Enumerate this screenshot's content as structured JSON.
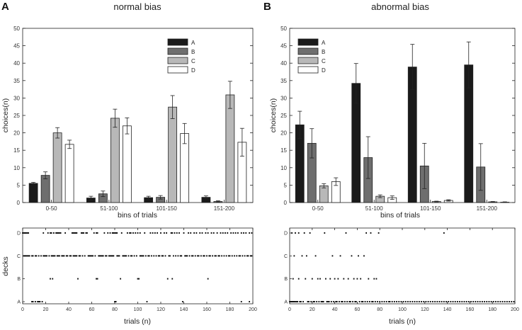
{
  "chart_data": [
    {
      "panel": "A",
      "title": "normal bias",
      "type": "bar",
      "xlabel": "bins of trials",
      "ylabel": "choices(n)",
      "ylim": [
        0,
        50
      ],
      "yticks": [
        0,
        5,
        10,
        15,
        20,
        25,
        30,
        35,
        40,
        45,
        50
      ],
      "categories": [
        "0-50",
        "51-100",
        "101-150",
        "151-200"
      ],
      "series": [
        {
          "name": "A",
          "color": "#1a1a1a",
          "values": [
            5.5,
            1.3,
            1.4,
            1.5
          ],
          "errors": [
            0.3,
            0.5,
            0.4,
            0.4
          ]
        },
        {
          "name": "B",
          "color": "#6e6e6e",
          "values": [
            7.8,
            2.5,
            1.5,
            0.3
          ],
          "errors": [
            1.0,
            0.8,
            0.5,
            0.2
          ]
        },
        {
          "name": "C",
          "color": "#b8b8b8",
          "values": [
            20.0,
            24.2,
            27.4,
            30.9
          ],
          "errors": [
            1.5,
            2.6,
            3.3,
            3.9
          ]
        },
        {
          "name": "D",
          "color": "#ffffff",
          "values": [
            16.7,
            22.0,
            19.8,
            17.3
          ],
          "errors": [
            1.2,
            2.3,
            2.9,
            4.0
          ]
        }
      ],
      "legend_position": "top-right"
    },
    {
      "panel": "B",
      "title": "abnormal bias",
      "type": "bar",
      "xlabel": "bins of trials",
      "ylabel": "choices(n)",
      "ylim": [
        0,
        50
      ],
      "yticks": [
        0,
        5,
        10,
        15,
        20,
        25,
        30,
        35,
        40,
        45,
        50
      ],
      "categories": [
        "0-50",
        "51-100",
        "101-150",
        "151-200"
      ],
      "series": [
        {
          "name": "A",
          "color": "#1a1a1a",
          "values": [
            22.3,
            34.2,
            38.9,
            39.5
          ],
          "errors": [
            3.9,
            5.7,
            6.5,
            6.6
          ]
        },
        {
          "name": "B",
          "color": "#6e6e6e",
          "values": [
            17.0,
            12.9,
            10.5,
            10.2
          ],
          "errors": [
            4.2,
            6.0,
            6.5,
            6.7
          ]
        },
        {
          "name": "C",
          "color": "#b8b8b8",
          "values": [
            4.8,
            1.8,
            0.3,
            0.2
          ],
          "errors": [
            0.6,
            0.4,
            0.1,
            0.1
          ]
        },
        {
          "name": "D",
          "color": "#ffffff",
          "values": [
            6.0,
            1.4,
            0.6,
            0.1
          ],
          "errors": [
            1.1,
            0.5,
            0.2,
            0.1
          ]
        }
      ],
      "legend_position": "top-left"
    },
    {
      "panel": "A-lower",
      "type": "scatter",
      "xlabel": "trials (n)",
      "ylabel": "decks",
      "xlim": [
        0,
        200
      ],
      "xticks": [
        0,
        20,
        40,
        60,
        80,
        100,
        120,
        140,
        160,
        180,
        200
      ],
      "y_categories": [
        "A",
        "B",
        "C",
        "D"
      ],
      "points": {
        "A": [
          8,
          9,
          11,
          13,
          14,
          15,
          17,
          80,
          81,
          108,
          139,
          190,
          197
        ],
        "B": [
          24,
          26,
          48,
          64,
          65,
          85,
          100,
          101,
          126,
          130,
          161
        ],
        "C": [
          1,
          2,
          3,
          4,
          5,
          6,
          8,
          9,
          11,
          12,
          14,
          16,
          18,
          19,
          20,
          21,
          23,
          25,
          26,
          27,
          28,
          30,
          31,
          32,
          34,
          35,
          36,
          38,
          39,
          41,
          42,
          44,
          45,
          46,
          47,
          49,
          50,
          52,
          54,
          57,
          58,
          59,
          60,
          61,
          63,
          66,
          67,
          68,
          69,
          70,
          72,
          73,
          75,
          76,
          77,
          78,
          79,
          82,
          83,
          84,
          87,
          88,
          89,
          90,
          92,
          94,
          95,
          97,
          99,
          102,
          103,
          104,
          105,
          107,
          109,
          110,
          112,
          114,
          116,
          118,
          119,
          121,
          122,
          124,
          127,
          128,
          131,
          133,
          135,
          137,
          138,
          141,
          142,
          143,
          145,
          147,
          148,
          150,
          152,
          153,
          155,
          157,
          158,
          160,
          162,
          163,
          165,
          167,
          168,
          170,
          171,
          173,
          175,
          177,
          179,
          180,
          182,
          184,
          186,
          188,
          189,
          191,
          193,
          195,
          196,
          198,
          199
        ],
        "D": [
          0,
          1,
          2,
          3,
          4,
          5,
          18,
          22,
          24,
          25,
          27,
          29,
          30,
          31,
          32,
          33,
          37,
          43,
          44,
          45,
          46,
          47,
          51,
          52,
          53,
          55,
          56,
          62,
          64,
          65,
          71,
          74,
          76,
          78,
          79,
          80,
          81,
          82,
          86,
          91,
          93,
          94,
          96,
          98,
          100,
          102,
          106,
          111,
          113,
          115,
          117,
          120,
          123,
          125,
          129,
          130,
          132,
          134,
          136,
          140,
          144,
          146,
          149,
          151,
          154,
          156,
          159,
          161,
          164,
          166,
          169,
          172,
          174,
          176,
          178,
          181,
          183,
          185,
          187,
          190,
          192,
          194,
          197,
          199
        ]
      }
    },
    {
      "panel": "B-lower",
      "type": "scatter",
      "xlabel": "trials (n)",
      "ylabel": "",
      "xlim": [
        0,
        200
      ],
      "xticks": [
        0,
        20,
        40,
        60,
        80,
        100,
        120,
        140,
        160,
        180,
        200
      ],
      "y_categories": [
        "A",
        "B",
        "C",
        "D"
      ],
      "points": {
        "A": [
          0,
          1,
          2,
          3,
          4,
          5,
          6,
          7,
          9,
          10,
          12,
          16,
          17,
          19,
          21,
          22,
          24,
          26,
          28,
          29,
          30,
          33,
          34,
          35,
          37,
          39,
          41,
          42,
          44,
          46,
          47,
          49,
          51,
          53,
          54,
          56,
          58,
          59,
          62,
          64,
          65,
          67,
          69,
          71,
          73,
          74,
          76,
          78,
          80,
          82,
          84,
          86,
          88,
          89,
          91,
          93,
          95,
          97,
          99,
          101,
          103,
          105,
          107,
          109,
          111,
          113,
          115,
          117,
          119,
          121,
          123,
          125,
          127,
          129,
          131,
          133,
          135,
          137,
          139,
          141,
          143,
          145,
          147,
          149,
          151,
          153,
          155,
          157,
          159,
          161,
          163,
          165,
          167,
          169,
          171,
          173,
          175,
          177,
          179,
          181,
          183,
          185,
          187,
          189,
          191,
          193,
          195,
          197,
          199
        ],
        "B": [
          3,
          8,
          14,
          20,
          25,
          27,
          32,
          36,
          40,
          43,
          48,
          52,
          57,
          60,
          63,
          70,
          75,
          77
        ],
        "C": [
          4,
          11,
          15,
          23,
          38,
          45,
          55,
          61,
          66
        ],
        "D": [
          2,
          5,
          8,
          13,
          18,
          31,
          50,
          68,
          72,
          79,
          137
        ]
      }
    }
  ]
}
